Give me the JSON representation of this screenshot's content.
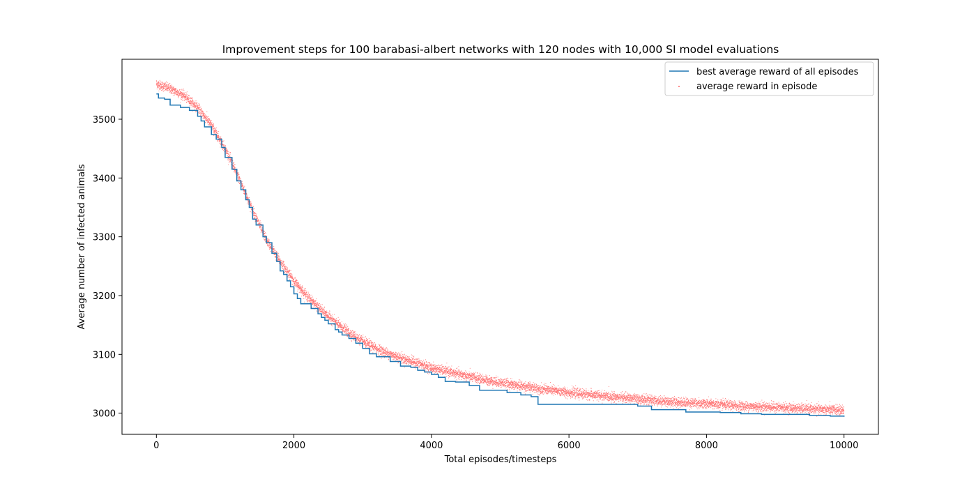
{
  "chart_data": {
    "type": "line+scatter",
    "title": "Improvement steps for 100 barabasi-albert networks with 120 nodes with 10,000 SI model evaluations",
    "xlabel": "Total episodes/timesteps",
    "ylabel": "Average number of infected animals",
    "xlim": [
      -500,
      10500
    ],
    "ylim": [
      2964,
      3602
    ],
    "xticks": [
      0,
      2000,
      4000,
      6000,
      8000,
      10000
    ],
    "xtick_labels": [
      "0",
      "2000",
      "4000",
      "6000",
      "8000",
      "10000"
    ],
    "yticks": [
      3000,
      3100,
      3200,
      3300,
      3400,
      3500
    ],
    "ytick_labels": [
      "3000",
      "3100",
      "3200",
      "3300",
      "3400",
      "3500"
    ],
    "grid": false,
    "legend_position": "top-right",
    "series": [
      {
        "name": "best average reward of all episodes",
        "kind": "step-line",
        "color": "#1f77b4",
        "x": [
          0,
          30,
          80,
          120,
          200,
          350,
          480,
          600,
          650,
          700,
          800,
          870,
          950,
          1000,
          1100,
          1170,
          1230,
          1300,
          1350,
          1400,
          1450,
          1550,
          1600,
          1680,
          1750,
          1800,
          1850,
          1900,
          1950,
          2000,
          2050,
          2100,
          2150,
          2250,
          2350,
          2400,
          2450,
          2500,
          2600,
          2650,
          2700,
          2800,
          2900,
          3000,
          3100,
          3200,
          3400,
          3550,
          3700,
          3800,
          3900,
          4000,
          4100,
          4200,
          4350,
          4550,
          4700,
          5100,
          5300,
          5450,
          5550,
          6500,
          7000,
          7200,
          7700,
          8200,
          8500,
          8800,
          9500,
          9800,
          10000
        ],
        "y": [
          3543,
          3536,
          3536,
          3534,
          3524,
          3520,
          3515,
          3505,
          3497,
          3487,
          3474,
          3466,
          3452,
          3435,
          3415,
          3395,
          3380,
          3363,
          3350,
          3330,
          3320,
          3300,
          3290,
          3272,
          3258,
          3242,
          3236,
          3225,
          3215,
          3203,
          3195,
          3186,
          3186,
          3178,
          3169,
          3163,
          3158,
          3152,
          3142,
          3138,
          3133,
          3127,
          3119,
          3110,
          3101,
          3096,
          3088,
          3080,
          3078,
          3073,
          3070,
          3066,
          3061,
          3054,
          3053,
          3047,
          3039,
          3035,
          3031,
          3028,
          3015,
          3015,
          3012,
          3006,
          3002,
          3001,
          2999,
          2998,
          2996,
          2995,
          2994
        ]
      },
      {
        "name": "average reward in episode",
        "kind": "scatter",
        "color": "#ff0000",
        "curve": {
          "x": [
            0,
            200,
            400,
            600,
            800,
            1000,
            1200,
            1400,
            1600,
            1800,
            2000,
            2200,
            2400,
            2600,
            2800,
            3000,
            3200,
            3400,
            3600,
            3800,
            4000,
            4400,
            4800,
            5200,
            5600,
            6000,
            6500,
            7000,
            7500,
            8000,
            8500,
            9000,
            9500,
            10000
          ],
          "y": [
            3560,
            3552,
            3540,
            3520,
            3490,
            3450,
            3400,
            3345,
            3295,
            3258,
            3225,
            3198,
            3175,
            3155,
            3137,
            3122,
            3110,
            3100,
            3092,
            3085,
            3077,
            3066,
            3056,
            3048,
            3041,
            3035,
            3029,
            3024,
            3019,
            3016,
            3012,
            3010,
            3007,
            3005
          ]
        },
        "spread": 4,
        "count": 10000
      }
    ]
  }
}
